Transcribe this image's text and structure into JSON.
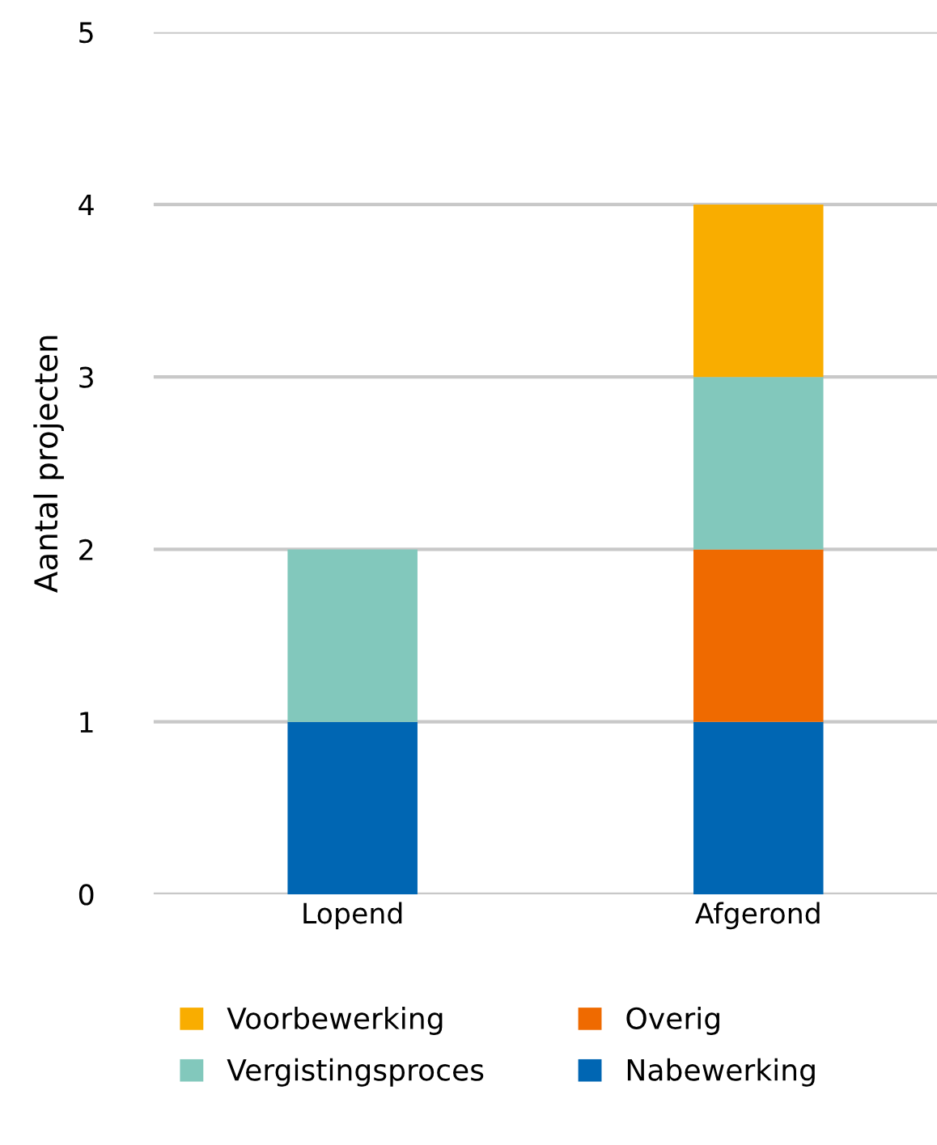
{
  "chart_data": {
    "type": "bar",
    "stacked": true,
    "ylabel": "Aantal projecten",
    "categories": [
      "Lopend",
      "Afgerond"
    ],
    "series": [
      {
        "name": "Nabewerking",
        "color": "#0066b3",
        "values": [
          1,
          1
        ]
      },
      {
        "name": "Overig",
        "color": "#ef6a00",
        "values": [
          0,
          1
        ]
      },
      {
        "name": "Vergistingsproces",
        "color": "#82c8bc",
        "values": [
          1,
          1
        ]
      },
      {
        "name": "Voorbewerking",
        "color": "#f9ad00",
        "values": [
          0,
          1
        ]
      }
    ],
    "ylim": [
      0,
      5
    ],
    "yticks": [
      0,
      1,
      2,
      3,
      4,
      5
    ],
    "grid": "y",
    "legend": "bottom"
  }
}
